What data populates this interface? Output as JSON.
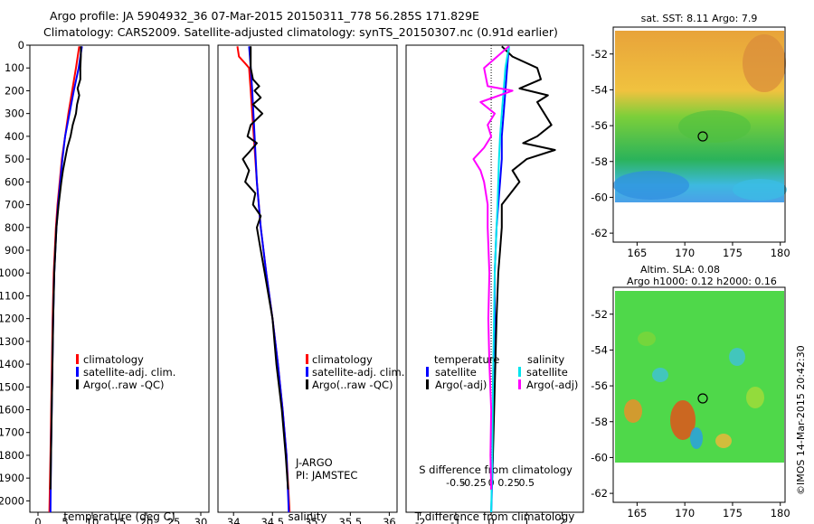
{
  "titles": {
    "line1": "Argo profile: JA 5904932_36 07-Mar-2015 20150311_778 56.285S 171.829E",
    "line2": "Climatology: CARS2009. Satellite-adjusted climatology: synTS_20150307.nc (0.91d earlier)"
  },
  "colors": {
    "climatology": "#ff0000",
    "satellite": "#0000ff",
    "argo": "#000000",
    "sal_satellite": "#00e5ee",
    "sal_argo": "#ff00ff"
  },
  "chart_data": [
    {
      "type": "line",
      "panel": "temperature",
      "xlabel": "temperature (deg C)",
      "xticks": [
        0,
        5,
        10,
        15,
        20,
        25,
        30
      ],
      "xlim": [
        -1.5,
        31.5
      ],
      "ylim": [
        0,
        2050
      ],
      "yticks": [
        0,
        100,
        200,
        300,
        400,
        500,
        600,
        700,
        800,
        900,
        1000,
        1100,
        1200,
        1300,
        1400,
        1500,
        1600,
        1700,
        1800,
        1900,
        2000
      ],
      "y_inverted": true,
      "legend": {
        "placement": "lower-center",
        "entries": [
          "climatology",
          "satellite-adj. clim.",
          "Argo(..raw -QC)"
        ]
      },
      "series": [
        {
          "name": "climatology",
          "color_key": "climatology",
          "depth": [
            5,
            100,
            200,
            300,
            400,
            500,
            600,
            700,
            800,
            900,
            1000,
            1200,
            1500,
            1800,
            2050
          ],
          "values": [
            7.6,
            7.0,
            6.3,
            5.6,
            5.0,
            4.4,
            4.0,
            3.6,
            3.3,
            3.1,
            2.9,
            2.7,
            2.5,
            2.3,
            2.1
          ]
        },
        {
          "name": "satellite-adj. clim.",
          "color_key": "satellite",
          "depth": [
            5,
            100,
            200,
            300,
            400,
            500,
            600,
            700,
            800,
            900,
            1000,
            1200,
            1500,
            1800,
            2050
          ],
          "values": [
            8.1,
            7.5,
            6.6,
            5.8,
            5.0,
            4.5,
            4.1,
            3.7,
            3.4,
            3.2,
            3.0,
            2.8,
            2.6,
            2.4,
            2.3
          ]
        },
        {
          "name": "Argo(..raw -QC)",
          "color_key": "argo",
          "depth": [
            5,
            50,
            100,
            150,
            190,
            220,
            260,
            300,
            350,
            400,
            450,
            500,
            550,
            600,
            700,
            800,
            900,
            1000,
            1200,
            1500,
            1800,
            1950
          ],
          "values": [
            7.9,
            7.9,
            7.8,
            7.8,
            7.3,
            7.6,
            7.2,
            7.0,
            6.4,
            6.0,
            5.4,
            5.0,
            4.6,
            4.3,
            3.8,
            3.4,
            3.2,
            3.0,
            2.8,
            2.6,
            2.4,
            2.3
          ]
        }
      ]
    },
    {
      "type": "line",
      "panel": "salinity",
      "xlabel": "salinity",
      "xticks": [
        34,
        34.5,
        35,
        35.5,
        36
      ],
      "xlim": [
        33.8,
        36.1
      ],
      "ylim": [
        0,
        2050
      ],
      "y_inverted": true,
      "legend": {
        "placement": "lower-right",
        "entries": [
          "climatology",
          "satellite-adj. clim.",
          "Argo(..raw -QC)"
        ]
      },
      "annotations": [
        "J-ARGO",
        "PI: JAMSTEC"
      ],
      "series": [
        {
          "name": "climatology",
          "color_key": "climatology",
          "depth": [
            5,
            50,
            80,
            100,
            200,
            400,
            600,
            800,
            1000,
            1200,
            1400,
            1600,
            1800,
            2050
          ],
          "values": [
            34.05,
            34.07,
            34.15,
            34.2,
            34.22,
            34.26,
            34.3,
            34.35,
            34.42,
            34.5,
            34.57,
            34.63,
            34.68,
            34.72
          ]
        },
        {
          "name": "satellite-adj. clim.",
          "color_key": "satellite",
          "depth": [
            5,
            50,
            100,
            200,
            400,
            600,
            800,
            1000,
            1200,
            1400,
            1600,
            1800,
            2050
          ],
          "values": [
            34.2,
            34.21,
            34.22,
            34.24,
            34.27,
            34.3,
            34.35,
            34.42,
            34.5,
            34.57,
            34.63,
            34.68,
            34.71
          ]
        },
        {
          "name": "Argo(..raw -QC)",
          "color_key": "argo",
          "depth": [
            5,
            100,
            150,
            180,
            200,
            230,
            260,
            300,
            350,
            400,
            430,
            470,
            500,
            550,
            600,
            650,
            700,
            750,
            800,
            900,
            1000,
            1200,
            1400,
            1600,
            1800,
            1950
          ],
          "values": [
            34.22,
            34.22,
            34.25,
            34.33,
            34.27,
            34.35,
            34.25,
            34.37,
            34.22,
            34.18,
            34.3,
            34.2,
            34.12,
            34.2,
            34.15,
            34.28,
            34.25,
            34.35,
            34.3,
            34.35,
            34.4,
            34.5,
            34.55,
            34.62,
            34.67,
            34.7
          ]
        }
      ]
    },
    {
      "type": "line",
      "panel": "difference",
      "xlabel": "T difference from climatology",
      "xlabel_top": "S difference from climatology",
      "xticks": [
        -2,
        -1,
        0,
        1,
        2
      ],
      "xtick_labels": [
        "-2",
        "-1",
        "0",
        "1",
        "2"
      ],
      "xlim": [
        -2.4,
        2.6
      ],
      "sticks": [
        -0.5,
        -0.25,
        0,
        0.25,
        0.5
      ],
      "stick_labels": [
        "-0.5",
        "-0.25",
        "0",
        "0.25",
        "0.5"
      ],
      "ylim": [
        0,
        2050
      ],
      "y_inverted": true,
      "legend": {
        "placement": "lower-center",
        "temperature_header": "temperature",
        "salinity_header": "salinity",
        "entries": [
          "satellite",
          "Argo(-adj)",
          "satellite",
          "Argo(-adj)"
        ]
      },
      "series": [
        {
          "name": "satellite",
          "quantity": "temperature",
          "color_key": "satellite",
          "depth": [
            5,
            100,
            200,
            300,
            400,
            500,
            600,
            700,
            800,
            1000,
            1200,
            1500,
            1800,
            2050
          ],
          "values": [
            0.5,
            0.45,
            0.4,
            0.35,
            0.3,
            0.3,
            0.25,
            0.2,
            0.15,
            0.1,
            0.1,
            0.05,
            0.05,
            0.0
          ]
        },
        {
          "name": "Argo(-adj)",
          "quantity": "temperature",
          "color_key": "argo",
          "depth": [
            5,
            50,
            100,
            150,
            190,
            220,
            250,
            300,
            350,
            400,
            430,
            460,
            500,
            550,
            600,
            700,
            800,
            900,
            1000,
            1200,
            1500,
            1800,
            1950
          ],
          "values": [
            0.3,
            0.6,
            1.3,
            1.4,
            0.8,
            1.6,
            1.3,
            1.5,
            1.7,
            1.3,
            0.9,
            1.8,
            1.0,
            0.6,
            0.8,
            0.3,
            0.3,
            0.25,
            0.2,
            0.15,
            0.1,
            0.05,
            0.0
          ]
        },
        {
          "name": "satellite",
          "quantity": "salinity",
          "color_key": "sal_satellite",
          "depth": [
            5,
            100,
            200,
            300,
            400,
            500,
            600,
            700,
            800,
            1000,
            1200,
            1500,
            1800,
            2050
          ],
          "values": [
            0.5,
            0.4,
            0.35,
            0.3,
            0.25,
            0.22,
            0.2,
            0.18,
            0.15,
            0.1,
            0.08,
            0.05,
            0.03,
            0.0
          ]
        },
        {
          "name": "Argo(-adj)",
          "quantity": "salinity",
          "color_key": "sal_argo",
          "depth": [
            5,
            100,
            180,
            200,
            250,
            300,
            350,
            400,
            450,
            500,
            550,
            600,
            700,
            800,
            1000,
            1200,
            1400,
            1600,
            1800,
            1950
          ],
          "values": [
            0.5,
            -0.2,
            -0.1,
            0.6,
            -0.3,
            0.1,
            -0.1,
            0.0,
            -0.2,
            -0.5,
            -0.3,
            -0.2,
            -0.1,
            -0.1,
            -0.05,
            -0.08,
            -0.05,
            0.0,
            -0.02,
            0.0
          ]
        }
      ]
    },
    {
      "type": "heatmap",
      "panel": "sst-map",
      "title": "sat. SST: 8.11 Argo: 7.9",
      "xticks": [
        165,
        170,
        175,
        180
      ],
      "yticks": [
        -52,
        -54,
        -56,
        -58,
        -60,
        -62
      ],
      "xlim": [
        162.5,
        180.5
      ],
      "ylim": [
        -62.5,
        -50.5
      ],
      "marker": {
        "lon": 171.829,
        "lat": -56.285
      }
    },
    {
      "type": "heatmap",
      "panel": "sla-map",
      "title_line1": "Altim. SLA: 0.08",
      "title_line2": "Argo h1000: 0.12 h2000: 0.16",
      "xticks": [
        165,
        170,
        175,
        180
      ],
      "yticks": [
        -52,
        -54,
        -56,
        -58,
        -60,
        -62
      ],
      "xlim": [
        162.5,
        180.5
      ],
      "ylim": [
        -62.5,
        -50.5
      ],
      "marker": {
        "lon": 171.829,
        "lat": -56.285
      }
    }
  ],
  "footer": {
    "stamp": "©IMOS 14-Mar-2015 20:42:30"
  }
}
